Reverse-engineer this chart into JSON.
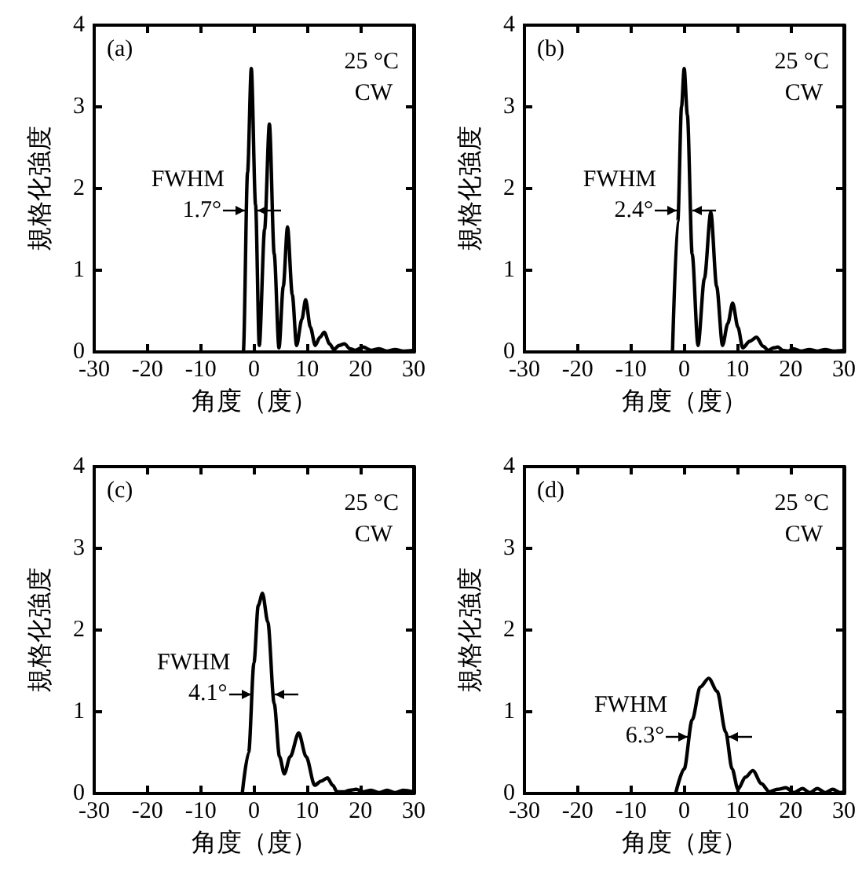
{
  "chart_data": [
    {
      "type": "line",
      "xlabel": "角度（度）",
      "ylabel": "規格化強度",
      "xlim": [
        -30,
        30
      ],
      "xticks": [
        -30,
        -20,
        -10,
        0,
        10,
        20,
        30
      ],
      "ylim": [
        0,
        4
      ],
      "yticks": [
        0,
        1,
        2,
        3,
        4
      ],
      "color": "#000000",
      "x": [
        -2.3,
        -2,
        -1.2,
        -0.5,
        0.3,
        1.0,
        2.0,
        2.9,
        3.8,
        4.7,
        5.5,
        6.3,
        7.2,
        8.0,
        9.0,
        9.7,
        10.6,
        11.5,
        12.4,
        13.2,
        14.2,
        15.0,
        16.0,
        17.0,
        18.0,
        19.0,
        20.5,
        22,
        23.5,
        25,
        26.5,
        28,
        30
      ],
      "values": [
        0,
        0,
        2.2,
        3.47,
        1.8,
        0.08,
        1.5,
        2.79,
        1.2,
        0.05,
        0.8,
        1.53,
        0.7,
        0.08,
        0.4,
        0.64,
        0.3,
        0.08,
        0.18,
        0.24,
        0.1,
        0.03,
        0.08,
        0.1,
        0.04,
        0.02,
        0.06,
        0.02,
        0.04,
        0.01,
        0.03,
        0.01,
        0.02
      ],
      "annotations": [
        "(a)",
        "25 °C",
        "CW",
        "FWHM",
        {
          "text": "1.7°",
          "x": -1.4,
          "y": 1.73
        }
      ]
    },
    {
      "type": "line",
      "xlabel": "角度（度）",
      "ylabel": "規格化強度",
      "xlim": [
        -30,
        30
      ],
      "xticks": [
        -30,
        -20,
        -10,
        0,
        10,
        20,
        30
      ],
      "ylim": [
        0,
        4
      ],
      "yticks": [
        0,
        1,
        2,
        3,
        4
      ],
      "color": "#000000",
      "x": [
        -2.2,
        -1.2,
        -0.5,
        0,
        0.6,
        1.5,
        2.6,
        3.8,
        5.0,
        6.1,
        7.2,
        8.2,
        9.1,
        10.1,
        11.0,
        12.3,
        13.6,
        14.8,
        15.8,
        16.8,
        17.6,
        18.5,
        19.5,
        20.5,
        22,
        23.5,
        25,
        26.5,
        28,
        30
      ],
      "values": [
        0,
        1.6,
        3.0,
        3.47,
        2.9,
        1.2,
        0.08,
        0.9,
        1.71,
        0.8,
        0.08,
        0.35,
        0.6,
        0.3,
        0.05,
        0.13,
        0.18,
        0.07,
        0.02,
        0.05,
        0.06,
        0.02,
        0.01,
        0.04,
        0.01,
        0.03,
        0.01,
        0.03,
        0.01,
        0.02
      ],
      "annotations": [
        "(b)",
        "25 °C",
        "CW",
        "FWHM",
        {
          "text": "2.4°",
          "x": -1.1,
          "y": 1.73
        }
      ]
    },
    {
      "type": "line",
      "xlabel": "角度（度）",
      "ylabel": "規格化強度",
      "xlim": [
        -30,
        30
      ],
      "xticks": [
        -30,
        -20,
        -10,
        0,
        10,
        20,
        30
      ],
      "ylim": [
        0,
        4
      ],
      "yticks": [
        0,
        1,
        2,
        3,
        4
      ],
      "color": "#000000",
      "x": [
        -2.2,
        -1,
        0,
        0.8,
        1.6,
        2.6,
        3.8,
        4.8,
        5.7,
        6.8,
        8.4,
        9.8,
        11.4,
        12.6,
        13.8,
        14.8,
        15.6,
        17,
        18,
        19.2,
        20.5,
        22,
        23.5,
        25,
        26.5,
        28,
        30
      ],
      "values": [
        0,
        0.5,
        1.6,
        2.3,
        2.45,
        2.1,
        1.1,
        0.45,
        0.24,
        0.45,
        0.74,
        0.45,
        0.1,
        0.15,
        0.19,
        0.1,
        0.02,
        0.02,
        0.04,
        0.05,
        0.02,
        0.04,
        0.01,
        0.04,
        0.01,
        0.04,
        0.02
      ],
      "annotations": [
        "(c)",
        "25 °C",
        "CW",
        "FWHM",
        {
          "text": "4.1°",
          "x": -0.3,
          "y": 1.22
        }
      ]
    },
    {
      "type": "line",
      "xlabel": "角度（度）",
      "ylabel": "規格化強度",
      "xlim": [
        -30,
        30
      ],
      "xticks": [
        -30,
        -20,
        -10,
        0,
        10,
        20,
        30
      ],
      "ylim": [
        0,
        4
      ],
      "yticks": [
        0,
        1,
        2,
        3,
        4
      ],
      "color": "#000000",
      "x": [
        -1.6,
        0,
        1.5,
        3,
        4.6,
        6.2,
        7.8,
        9,
        10.1,
        11.5,
        12.9,
        14.5,
        16,
        17.5,
        19.1,
        20.6,
        22.2,
        23.6,
        25,
        26.5,
        27.9,
        29.3,
        30
      ],
      "values": [
        0,
        0.3,
        0.9,
        1.3,
        1.41,
        1.25,
        0.75,
        0.3,
        0.05,
        0.2,
        0.28,
        0.12,
        0.02,
        0.05,
        0.07,
        0.01,
        0.06,
        0.01,
        0.06,
        0.01,
        0.05,
        0.01,
        0.02
      ],
      "annotations": [
        "(d)",
        "25 °C",
        "CW",
        "FWHM",
        {
          "text": "6.3°",
          "x": 1.0,
          "y": 0.7
        }
      ]
    }
  ]
}
